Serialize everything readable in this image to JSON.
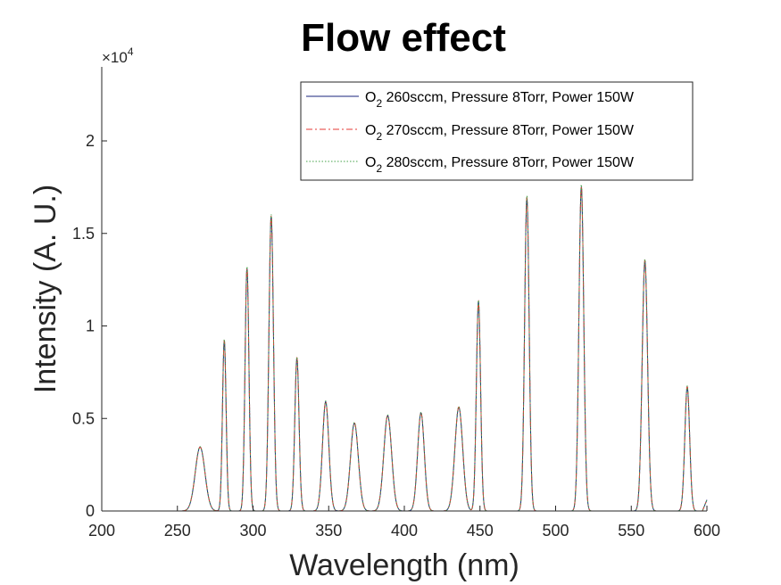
{
  "chart_data": {
    "type": "line",
    "title": "Flow effect",
    "xlabel": "Wavelength (nm)",
    "ylabel": "Intensity (A. U.)",
    "xlim": [
      200,
      600
    ],
    "ylim": [
      0,
      24000
    ],
    "x_ticks": [
      200,
      250,
      300,
      350,
      400,
      450,
      500,
      550,
      600
    ],
    "x_tick_labels": [
      "200",
      "250",
      "300",
      "350",
      "400",
      "450",
      "500",
      "550",
      "600"
    ],
    "y_ticks": [
      0,
      5000,
      10000,
      15000,
      20000
    ],
    "y_tick_labels": [
      "0",
      "0.5",
      "1",
      "1.5",
      "2"
    ],
    "y_exponent_label": "×10",
    "y_exponent_power": "4",
    "grid": false,
    "legend_position": "top-right",
    "peaks": [
      {
        "center": 265,
        "height": 3450,
        "sigma": 3.2
      },
      {
        "center": 281,
        "height": 9200,
        "sigma": 1.2
      },
      {
        "center": 296,
        "height": 13100,
        "sigma": 1.3
      },
      {
        "center": 312,
        "height": 15900,
        "sigma": 1.5
      },
      {
        "center": 329,
        "height": 8250,
        "sigma": 1.4
      },
      {
        "center": 348,
        "height": 5900,
        "sigma": 2.1
      },
      {
        "center": 367,
        "height": 4750,
        "sigma": 2.6
      },
      {
        "center": 389,
        "height": 5150,
        "sigma": 2.6
      },
      {
        "center": 411,
        "height": 5300,
        "sigma": 2.2
      },
      {
        "center": 436,
        "height": 5600,
        "sigma": 2.6
      },
      {
        "center": 449,
        "height": 11300,
        "sigma": 1.4
      },
      {
        "center": 481,
        "height": 16900,
        "sigma": 1.5
      },
      {
        "center": 517,
        "height": 17500,
        "sigma": 1.6
      },
      {
        "center": 559,
        "height": 13500,
        "sigma": 1.8
      },
      {
        "center": 587,
        "height": 6700,
        "sigma": 1.6
      }
    ],
    "series": [
      {
        "name_base": "O",
        "name_sub": "2",
        "name_rest": " 260sccm, Pressure 8Torr, Power 150W",
        "scale": 1.0,
        "color": "#1a237e",
        "dash": ""
      },
      {
        "name_base": "O",
        "name_sub": "2",
        "name_rest": " 270sccm, Pressure 8Torr, Power 150W",
        "scale": 1.003,
        "color": "#e53935",
        "dash": "7 3 2 3"
      },
      {
        "name_base": "O",
        "name_sub": "2",
        "name_rest": " 280sccm, Pressure 8Torr, Power 150W",
        "scale": 1.008,
        "color": "#43a047",
        "dash": "1.5 2"
      }
    ]
  }
}
